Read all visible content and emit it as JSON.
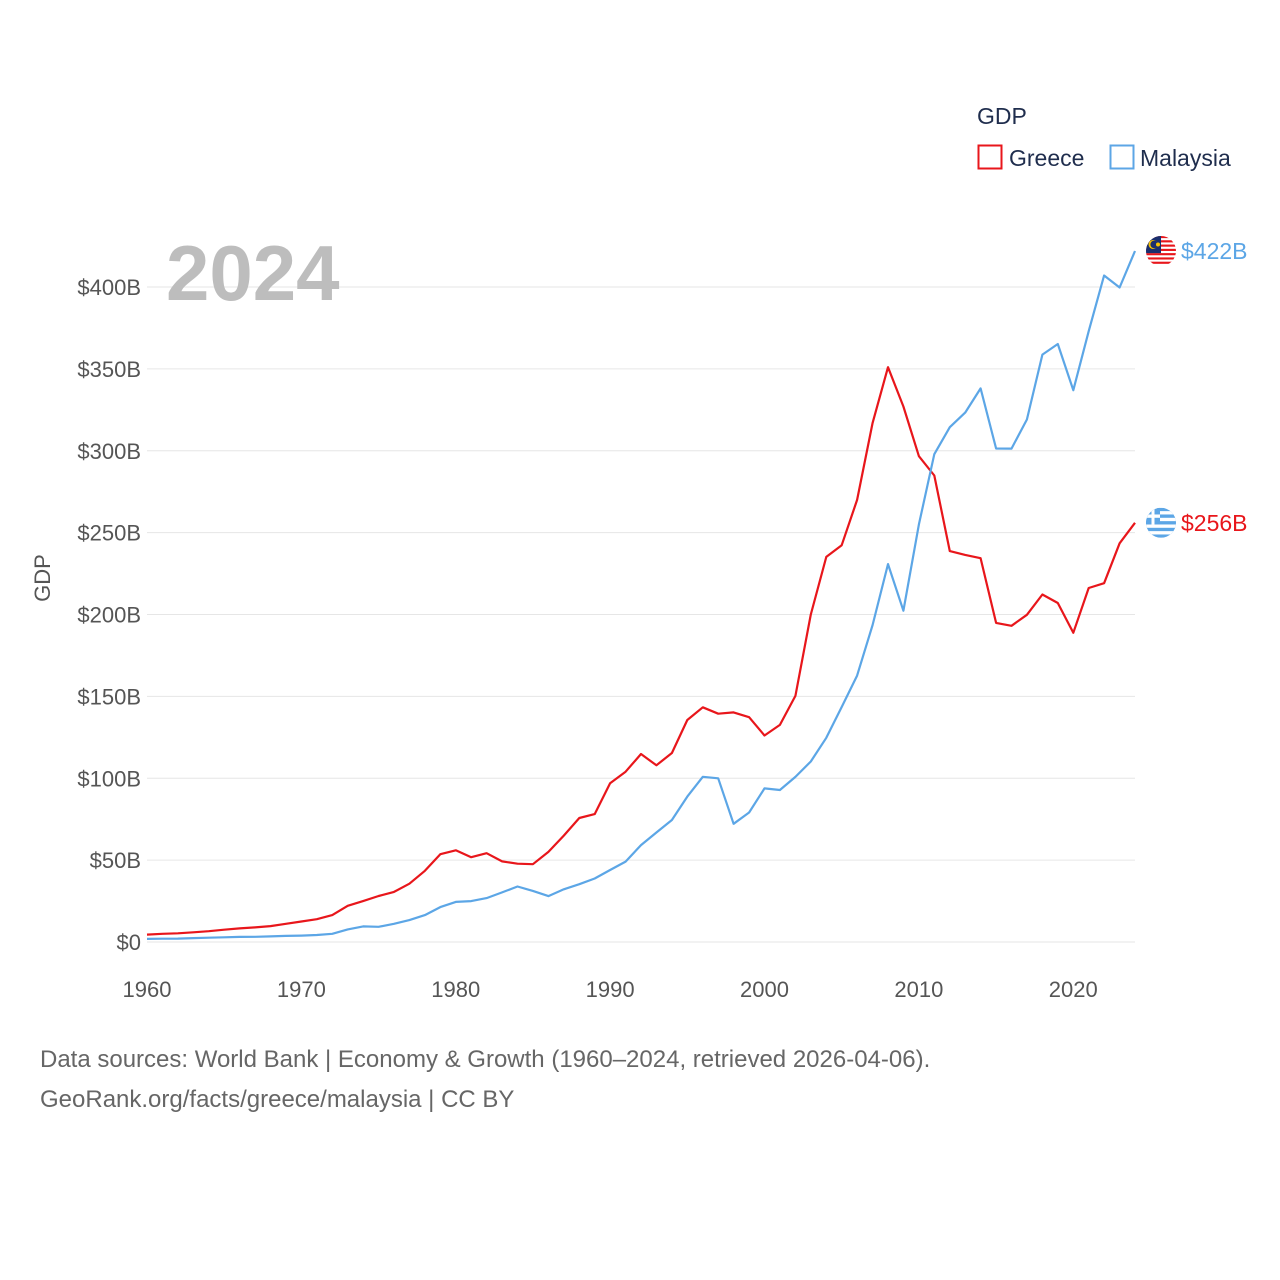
{
  "chart_data": {
    "type": "line",
    "title": "",
    "year_label": "2024",
    "xlabel": "",
    "ylabel": "GDP",
    "xlim": [
      1960,
      2024
    ],
    "ylim": [
      0,
      420
    ],
    "x_ticks": [
      1960,
      1970,
      1980,
      1990,
      2000,
      2010,
      2020
    ],
    "x_tick_labels": [
      "1960",
      "1970",
      "1980",
      "1990",
      "2000",
      "2010",
      "2020"
    ],
    "y_ticks": [
      0,
      50,
      100,
      150,
      200,
      250,
      300,
      350,
      400
    ],
    "y_tick_labels": [
      "$0",
      "$50B",
      "$100B",
      "$150B",
      "$200B",
      "$250B",
      "$300B",
      "$350B",
      "$400B"
    ],
    "grid": true,
    "legend": {
      "title": "GDP",
      "position": "top-right"
    },
    "unit": "billions USD",
    "x": [
      1960,
      1961,
      1962,
      1963,
      1964,
      1965,
      1966,
      1967,
      1968,
      1969,
      1970,
      1971,
      1972,
      1973,
      1974,
      1975,
      1976,
      1977,
      1978,
      1979,
      1980,
      1981,
      1982,
      1983,
      1984,
      1985,
      1986,
      1987,
      1988,
      1989,
      1990,
      1991,
      1992,
      1993,
      1994,
      1995,
      1996,
      1997,
      1998,
      1999,
      2000,
      2001,
      2002,
      2003,
      2004,
      2005,
      2006,
      2007,
      2008,
      2009,
      2010,
      2011,
      2012,
      2013,
      2014,
      2015,
      2016,
      2017,
      2018,
      2019,
      2020,
      2021,
      2022,
      2023,
      2024
    ],
    "series": [
      {
        "name": "Greece",
        "color": "#e8161b",
        "flag": "greece-flag",
        "end_label": "$256B",
        "values": [
          4.5,
          5.0,
          5.3,
          5.9,
          6.6,
          7.5,
          8.3,
          8.9,
          9.7,
          11.1,
          12.5,
          13.9,
          16.4,
          22.1,
          25.0,
          28.1,
          30.6,
          35.6,
          43.5,
          53.6,
          56.0,
          51.8,
          54.2,
          49.2,
          47.8,
          47.5,
          55.0,
          65.0,
          75.7,
          78.1,
          97.0,
          104.0,
          114.8,
          107.9,
          115.4,
          135.6,
          143.3,
          139.4,
          140.2,
          137.3,
          126.1,
          132.6,
          150.3,
          200.0,
          235.2,
          242.3,
          270.0,
          317.0,
          351.0,
          327.0,
          296.7,
          284.9,
          238.7,
          236.4,
          234.4,
          194.9,
          193.1,
          199.8,
          212.2,
          207.0,
          188.8,
          216.2,
          219.1,
          243.5,
          256.0
        ]
      },
      {
        "name": "Malaysia",
        "color": "#5ca6e6",
        "flag": "malaysia-flag",
        "end_label": "$422B",
        "values": [
          1.9,
          2.0,
          2.1,
          2.4,
          2.6,
          2.9,
          3.1,
          3.2,
          3.4,
          3.7,
          3.9,
          4.3,
          5.0,
          7.7,
          9.5,
          9.3,
          11.1,
          13.4,
          16.4,
          21.3,
          24.5,
          25.0,
          26.8,
          30.3,
          33.9,
          31.2,
          28.0,
          32.2,
          35.3,
          38.8,
          44.0,
          49.1,
          59.2,
          66.9,
          74.5,
          88.8,
          100.9,
          100.0,
          72.2,
          79.1,
          93.8,
          92.8,
          100.8,
          110.2,
          124.7,
          143.5,
          162.7,
          193.6,
          230.8,
          202.3,
          255.0,
          297.9,
          314.4,
          323.3,
          338.1,
          301.4,
          301.3,
          319.1,
          358.7,
          365.2,
          337.0,
          373.0,
          407.0,
          399.7,
          422.0
        ]
      }
    ]
  },
  "footer": {
    "line1": "Data sources: World Bank | Economy & Growth (1960–2024, retrieved 2026-04-06).",
    "line2": "GeoRank.org/facts/greece/malaysia | CC BY"
  }
}
